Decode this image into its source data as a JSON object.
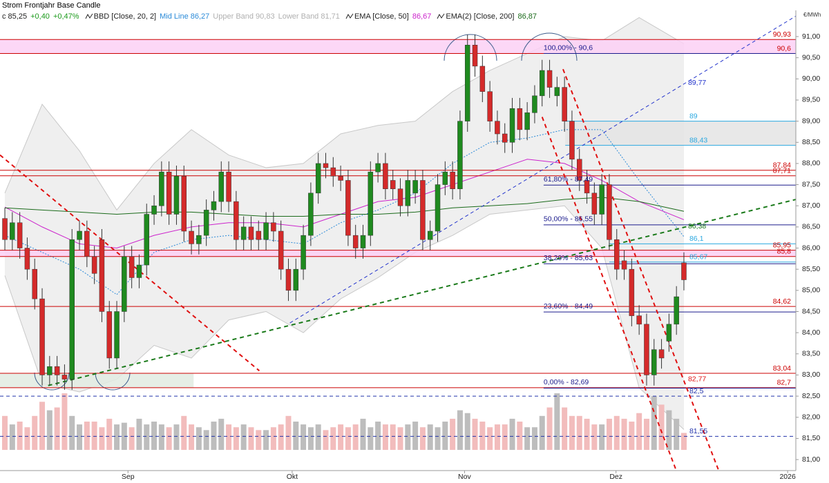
{
  "header": {
    "title": "Strom Frontjahr Base Candle",
    "unit": "€/MWh",
    "legend": [
      {
        "text": "c 85,25",
        "color": "#222222"
      },
      {
        "text": "+0,40",
        "color": "#1a9a1a"
      },
      {
        "text": "+0,47%",
        "color": "#1a9a1a"
      },
      {
        "text": "BBD [Close, 20, 2]",
        "color": "#222222"
      },
      {
        "text": "Mid Line 86,27",
        "color": "#2a8ad8"
      },
      {
        "text": "Upper Band 90,83",
        "color": "#b0b0b0"
      },
      {
        "text": "Lower Band 81,71",
        "color": "#b0b0b0"
      },
      {
        "text": "EMA [Close, 50]",
        "color": "#222222"
      },
      {
        "text": "86,67",
        "color": "#cc22cc"
      },
      {
        "text": "EMA(2) [Close, 200]",
        "color": "#222222"
      },
      {
        "text": "86,87",
        "color": "#1a6a1a"
      }
    ]
  },
  "chart_data": {
    "type": "candlestick",
    "open": [
      86.7,
      86.2,
      86.6,
      86.0,
      85.5,
      84.8,
      83.0,
      83.2,
      83.0,
      82.9,
      86.2,
      86.4,
      85.8,
      86.2,
      84.5,
      83.4,
      84.5,
      85.8,
      85.3,
      85.6,
      86.8,
      87.0,
      87.8,
      86.8,
      87.7,
      86.4,
      86.1,
      86.3,
      86.9,
      87.1,
      87.8,
      87.1,
      86.2,
      86.5,
      86.4,
      86.2,
      86.6,
      86.4,
      85.5,
      85.0,
      85.5,
      86.3,
      87.3,
      88.0,
      87.9,
      87.7,
      87.6,
      86.3,
      86.0,
      86.3,
      87.8,
      88.0,
      87.6,
      87.4,
      87.0,
      87.3,
      87.6,
      86.2,
      86.4,
      87.5,
      87.8,
      87.4,
      89.0,
      90.8,
      90.3,
      89.7,
      89.0,
      88.7,
      88.5,
      89.3,
      88.8,
      89.2,
      89.6,
      90.2,
      89.6,
      89.8,
      89.0,
      88.1,
      87.6,
      87.3,
      86.8,
      87.5,
      86.2,
      85.7,
      85.5,
      84.4,
      84.2,
      83.0,
      83.6,
      83.8,
      84.2,
      85.65
    ],
    "high": [
      86.95,
      86.85,
      86.85,
      86.25,
      85.75,
      85.05,
      83.45,
      83.45,
      83.25,
      86.45,
      86.65,
      86.65,
      86.05,
      86.45,
      84.75,
      84.75,
      86.05,
      86.05,
      85.85,
      87.05,
      87.25,
      88.05,
      88.05,
      87.95,
      87.95,
      86.65,
      86.55,
      87.15,
      87.35,
      88.05,
      88.05,
      87.35,
      86.75,
      86.75,
      86.65,
      86.85,
      86.85,
      86.65,
      85.75,
      85.75,
      86.55,
      87.55,
      88.25,
      88.25,
      88.15,
      87.95,
      87.85,
      86.55,
      86.55,
      88.05,
      88.25,
      88.25,
      87.85,
      87.65,
      87.85,
      87.85,
      87.85,
      86.65,
      87.75,
      88.05,
      88.05,
      89.25,
      91.05,
      91.05,
      90.55,
      89.95,
      89.25,
      88.95,
      89.55,
      89.55,
      89.45,
      89.85,
      90.45,
      90.45,
      90.05,
      90.05,
      89.25,
      88.35,
      87.85,
      87.55,
      87.75,
      87.75,
      86.45,
      85.95,
      85.75,
      84.65,
      84.45,
      83.85,
      83.85,
      84.45,
      85.1,
      85.9
    ],
    "low": [
      85.95,
      85.95,
      85.75,
      85.25,
      84.55,
      82.75,
      82.75,
      82.75,
      82.65,
      82.65,
      85.95,
      85.55,
      85.15,
      84.25,
      83.15,
      83.15,
      84.25,
      85.05,
      85.05,
      85.35,
      86.55,
      86.75,
      86.55,
      86.55,
      86.15,
      85.85,
      85.85,
      86.05,
      86.65,
      86.85,
      86.85,
      85.95,
      85.95,
      85.95,
      85.95,
      85.95,
      86.15,
      85.25,
      84.75,
      84.75,
      85.25,
      86.05,
      87.05,
      87.65,
      87.45,
      87.35,
      86.05,
      85.75,
      85.75,
      86.05,
      87.55,
      87.15,
      87.15,
      86.75,
      86.75,
      87.05,
      85.95,
      85.95,
      86.15,
      87.25,
      87.15,
      87.15,
      88.75,
      90.05,
      89.45,
      88.75,
      88.45,
      88.25,
      88.25,
      88.55,
      88.55,
      88.95,
      89.35,
      89.55,
      89.35,
      88.75,
      87.85,
      87.35,
      87.05,
      86.55,
      86.55,
      85.95,
      85.25,
      85.25,
      84.15,
      83.95,
      82.75,
      82.75,
      83.15,
      83.55,
      83.95,
      85.0
    ],
    "close": [
      86.2,
      86.6,
      86.0,
      85.5,
      84.8,
      83.0,
      83.2,
      83.0,
      82.9,
      86.2,
      86.4,
      85.8,
      85.4,
      84.5,
      83.4,
      84.5,
      85.8,
      85.3,
      85.6,
      86.8,
      87.0,
      87.8,
      86.8,
      87.7,
      86.4,
      86.1,
      86.3,
      86.9,
      87.1,
      87.8,
      87.1,
      86.2,
      86.5,
      86.2,
      86.2,
      86.6,
      86.4,
      85.5,
      85.0,
      85.5,
      86.3,
      87.3,
      88.0,
      87.9,
      87.7,
      87.6,
      86.3,
      86.0,
      86.3,
      87.8,
      88.0,
      87.4,
      87.4,
      87.0,
      87.6,
      87.6,
      86.2,
      86.4,
      87.5,
      87.8,
      87.4,
      89.0,
      90.8,
      90.3,
      89.7,
      89.0,
      88.7,
      88.5,
      89.3,
      88.8,
      89.2,
      89.6,
      90.2,
      89.8,
      89.8,
      89.0,
      88.1,
      87.6,
      87.3,
      86.8,
      87.5,
      86.2,
      85.5,
      85.5,
      84.4,
      84.2,
      83.0,
      83.6,
      83.4,
      84.2,
      84.85,
      85.25
    ],
    "up_color": "#1f8a1f",
    "down_color": "#d42a2a",
    "volume": [
      60,
      45,
      50,
      40,
      60,
      85,
      70,
      75,
      100,
      60,
      45,
      50,
      50,
      40,
      55,
      45,
      48,
      40,
      55,
      45,
      50,
      45,
      40,
      45,
      60,
      45,
      40,
      35,
      50,
      55,
      45,
      40,
      45,
      40,
      35,
      35,
      40,
      45,
      60,
      50,
      45,
      40,
      45,
      35,
      40,
      45,
      40,
      45,
      55,
      40,
      50,
      45,
      45,
      40,
      45,
      50,
      40,
      45,
      40,
      50,
      55,
      70,
      65,
      55,
      50,
      40,
      45,
      45,
      55,
      50,
      40,
      40,
      60,
      75,
      100,
      75,
      60,
      60,
      55,
      45,
      45,
      55,
      60,
      55,
      50,
      65,
      55,
      95,
      80,
      70,
      55,
      30
    ],
    "volume_up_color": "#bdbdbd",
    "volume_down_color": "#f2bcbc",
    "xlim": [
      -0.65,
      106
    ],
    "ylim": [
      80.74,
      91.62
    ],
    "xticks": [
      {
        "value": 16.5,
        "label": "Sep"
      },
      {
        "value": 38.5,
        "label": "Okt"
      },
      {
        "value": 61.6,
        "label": "Nov"
      },
      {
        "value": 81.9,
        "label": "Dez"
      },
      {
        "value": 104.9,
        "label": "2026"
      }
    ],
    "yticks": [
      {
        "value": 81,
        "label": "81,00"
      },
      {
        "value": 81.5,
        "label": "81,50"
      },
      {
        "value": 82,
        "label": "82,00"
      },
      {
        "value": 82.5,
        "label": "82,50"
      },
      {
        "value": 83,
        "label": "83,00"
      },
      {
        "value": 83.5,
        "label": "83,50"
      },
      {
        "value": 84,
        "label": "84,00"
      },
      {
        "value": 84.5,
        "label": "84,50"
      },
      {
        "value": 85,
        "label": "85,00"
      },
      {
        "value": 85.5,
        "label": "85,50"
      },
      {
        "value": 86,
        "label": "86,00"
      },
      {
        "value": 86.5,
        "label": "86,50"
      },
      {
        "value": 87,
        "label": "87,00"
      },
      {
        "value": 87.5,
        "label": "87,50"
      },
      {
        "value": 88,
        "label": "88,00"
      },
      {
        "value": 88.5,
        "label": "88,50"
      },
      {
        "value": 89,
        "label": "89,00"
      },
      {
        "value": 89.5,
        "label": "89,50"
      },
      {
        "value": 90,
        "label": "90,00"
      },
      {
        "value": 90.5,
        "label": "90,50"
      },
      {
        "value": 91,
        "label": "91,00"
      }
    ],
    "bands": {
      "x": [
        0,
        5,
        10,
        15,
        20,
        25,
        30,
        35,
        40,
        45,
        50,
        55,
        60,
        65,
        70,
        75,
        80,
        85,
        91
      ],
      "upper": [
        87.3,
        89.4,
        88.3,
        86.9,
        88.0,
        88.8,
        88.2,
        87.9,
        88.0,
        88.7,
        88.9,
        89.0,
        89.7,
        90.2,
        90.6,
        91.0,
        90.9,
        91.45,
        90.83
      ],
      "lower": [
        85.35,
        82.8,
        82.6,
        82.9,
        83.7,
        83.4,
        84.3,
        84.5,
        84.0,
        84.8,
        85.3,
        85.9,
        86.3,
        86.8,
        86.9,
        87.0,
        86.0,
        82.7,
        81.71
      ],
      "mid": [
        86.3,
        85.9,
        85.5,
        84.9,
        85.9,
        86.2,
        86.3,
        86.2,
        86.1,
        86.6,
        86.9,
        87.3,
        88.0,
        88.5,
        88.6,
        88.8,
        88.8,
        87.6,
        86.27
      ],
      "fill": "#efefef",
      "edge": "#c8c8c8",
      "mid_color": "#2a8ad8"
    },
    "ema50": {
      "color": "#cc22cc",
      "values": [
        86.97,
        86.5,
        86.1,
        86.0,
        86.3,
        86.5,
        86.6,
        86.6,
        86.5,
        86.8,
        87.1,
        87.2,
        87.5,
        87.8,
        88.1,
        88.0,
        87.6,
        87.1,
        86.67
      ]
    },
    "ema200": {
      "color": "#1a6a1a",
      "values": [
        86.95,
        86.9,
        86.85,
        86.8,
        86.85,
        86.85,
        86.8,
        86.75,
        86.75,
        86.8,
        86.8,
        86.85,
        86.95,
        87.0,
        87.05,
        87.15,
        87.2,
        87.1,
        86.87
      ]
    },
    "zones": [
      {
        "y": [
          90.6,
          90.93
        ],
        "x": [
          -0.65,
          106
        ],
        "color": "#fbd0f4"
      },
      {
        "y": [
          85.8,
          85.95
        ],
        "x": [
          -0.65,
          106
        ],
        "color": "#fbd0f4"
      },
      {
        "y": [
          82.7,
          83.04
        ],
        "x": [
          -0.65,
          25.3
        ],
        "color": "#e2ebe2"
      },
      {
        "y": [
          88.43,
          89
        ],
        "x": [
          75.1,
          106
        ],
        "color": "#e4e4e4"
      }
    ],
    "levels": [
      {
        "value": 90.93,
        "label": "90,93",
        "color": "#cc0000",
        "x": [
          -0.65,
          106
        ],
        "side": "right"
      },
      {
        "value": 90.6,
        "label": "90,6",
        "color": "#cc0000",
        "x": [
          -0.65,
          106
        ],
        "side": "right"
      },
      {
        "value": 87.84,
        "label": "87,84",
        "color": "#cc0000",
        "x": [
          -0.65,
          106
        ],
        "side": "right"
      },
      {
        "value": 87.71,
        "label": "87,71",
        "color": "#cc0000",
        "x": [
          -0.65,
          106
        ],
        "side": "right"
      },
      {
        "value": 85.95,
        "label": "85,95",
        "color": "#cc0000",
        "x": [
          -0.65,
          106
        ],
        "side": "right"
      },
      {
        "value": 85.8,
        "label": "85,8",
        "color": "#cc0000",
        "x": [
          -0.65,
          106
        ],
        "side": "right"
      },
      {
        "value": 84.62,
        "label": "84,62",
        "color": "#cc0000",
        "x": [
          -0.65,
          106
        ],
        "side": "right"
      },
      {
        "value": 83.04,
        "label": "83,04",
        "color": "#cc0000",
        "x": [
          -0.65,
          106
        ],
        "side": "right"
      },
      {
        "value": 82.7,
        "label": "82,7",
        "color": "#cc0000",
        "x": [
          -0.65,
          106
        ],
        "side": "right"
      },
      {
        "value": 89,
        "color": "#2aa8e0",
        "x": [
          75.1,
          106
        ],
        "side": "left"
      },
      {
        "value": 88.43,
        "label": "88,43",
        "color": "#2aa8e0",
        "x": [
          75.1,
          106
        ],
        "side": "left"
      },
      {
        "value": 86.1,
        "label": "86,1",
        "color": "#2aa8e0",
        "x": [
          81,
          106
        ],
        "side": "left"
      },
      {
        "value": 85.67,
        "label": "85,67",
        "color": "#2aa8e0",
        "x": [
          81,
          106
        ],
        "side": "left"
      },
      {
        "value": 82.5,
        "label": "82,5",
        "color": "#2233aa",
        "x": [
          -0.65,
          106
        ],
        "side": "left",
        "dashed": true
      },
      {
        "value": 81.55,
        "label": "81,55",
        "color": "#2233aa",
        "x": [
          -0.65,
          106
        ],
        "side": "left",
        "dashed": true
      }
    ],
    "fib": {
      "x": [
        72.2,
        106
      ],
      "color": "#1a1a8c",
      "levels": [
        {
          "value": 90.6,
          "label": "100,00% - 90,6"
        },
        {
          "value": 87.49,
          "label": "61,80% - 87,49"
        },
        {
          "value": 86.55,
          "label": "50,00% - 86,55"
        },
        {
          "value": 85.63,
          "label": "38,20% - 85,63"
        },
        {
          "value": 84.49,
          "label": "23,60% - 84,49"
        },
        {
          "value": 82.69,
          "label": "0,00% - 82,69"
        }
      ]
    },
    "trendlines": [
      {
        "x": [
          -0.65,
          34.1
        ],
        "y": [
          88.2,
          83.1
        ],
        "color": "#e01010",
        "width": 2
      },
      {
        "x": [
          5.8,
          106
        ],
        "y": [
          82.75,
          87.15
        ],
        "color": "#1a7a1a",
        "width": 2,
        "tag": {
          "value": 86.38,
          "label": "86,38"
        }
      },
      {
        "x": [
          38.2,
          106.8
        ],
        "y": [
          84.23,
          91.57
        ],
        "color": "#2233cc",
        "width": 1,
        "tag": {
          "value": 89.77,
          "label": "89,77"
        }
      },
      {
        "x": [
          74.8,
          95.6
        ],
        "y": [
          90.23,
          80.77
        ],
        "color": "#e01010",
        "width": 2,
        "tag": {
          "value": 82.77,
          "label": "82,77"
        }
      },
      {
        "x": [
          72.0,
          90.6
        ],
        "y": [
          89.1,
          80.45
        ],
        "color": "#e01010",
        "width": 2
      }
    ]
  }
}
